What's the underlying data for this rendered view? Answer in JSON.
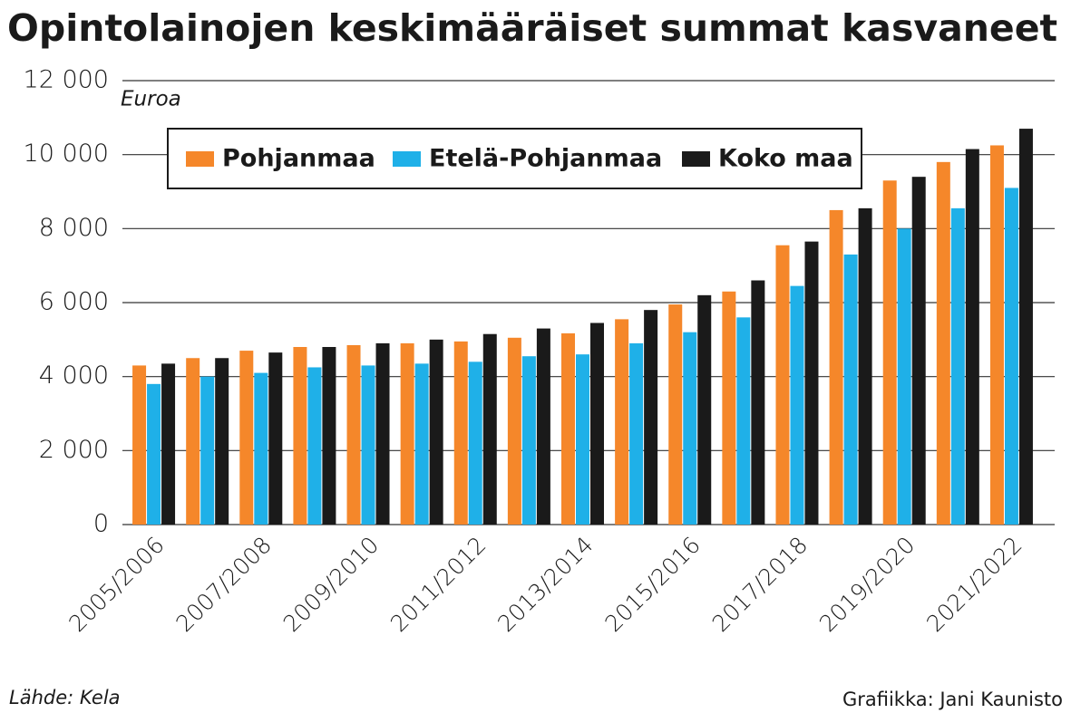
{
  "chart_data": {
    "type": "bar",
    "title": "Opintolainojen keskimääräiset summat kasvaneet",
    "y_label": "Euroa",
    "source": "Lähde: Kela",
    "credit": "Grafiikka: Jani Kaunisto",
    "categories": [
      "2005/2006",
      null,
      "2007/2008",
      null,
      "2009/2010",
      null,
      "2011/2012",
      null,
      "2013/2014",
      null,
      "2015/2016",
      null,
      "2017/2018",
      null,
      "2019/2020",
      null,
      "2021/2022"
    ],
    "series": [
      {
        "name": "Pohjanmaa",
        "color": "#f5872a",
        "values": [
          4300,
          4500,
          4700,
          4800,
          4850,
          4900,
          4950,
          5050,
          5170,
          5550,
          5950,
          6300,
          7550,
          8500,
          9300,
          9800,
          10250
        ]
      },
      {
        "name": "Etelä-Pohjanmaa",
        "color": "#1fb0e8",
        "values": [
          3800,
          4000,
          4100,
          4250,
          4300,
          4350,
          4400,
          4550,
          4600,
          4900,
          5200,
          5600,
          6450,
          7300,
          8000,
          8550,
          9100
        ]
      },
      {
        "name": "Koko maa",
        "color": "#1a1a1a",
        "values": [
          4350,
          4500,
          4650,
          4800,
          4900,
          5000,
          5150,
          5300,
          5450,
          5800,
          6200,
          6600,
          7650,
          8550,
          9400,
          10150,
          10700
        ]
      }
    ],
    "ylim": [
      0,
      12000
    ],
    "yticks": [
      0,
      {
        "value": 2000,
        "label": "2 000"
      },
      {
        "value": 4000,
        "label": "4 000"
      },
      {
        "value": 6000,
        "label": "6 000"
      },
      {
        "value": 8000,
        "label": "8 000"
      },
      {
        "value": 10000,
        "label": "10 000"
      },
      {
        "value": 12000,
        "label": "12 000"
      }
    ],
    "grid": true
  }
}
